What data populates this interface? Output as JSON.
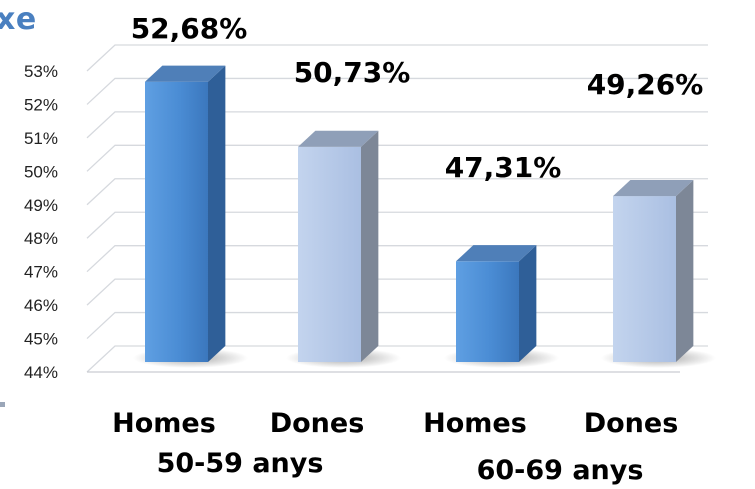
{
  "title_fragment": "xe",
  "chart_data": {
    "type": "bar",
    "categories": [
      "Homes",
      "Dones",
      "Homes",
      "Dones"
    ],
    "groups": [
      "50-59 anys",
      "60-69 anys"
    ],
    "values": [
      52.68,
      50.73,
      47.31,
      49.26
    ],
    "data_labels": [
      "52,68%",
      "50,73%",
      "47,31%",
      "49,26%"
    ],
    "y_ticks": [
      "44%",
      "45%",
      "46%",
      "47%",
      "48%",
      "49%",
      "50%",
      "51%",
      "52%",
      "53%"
    ],
    "ylim": [
      44,
      53
    ],
    "grid": true,
    "colors": [
      "#4a8fd6",
      "#b5c8e8",
      "#4a8fd6",
      "#b5c8e8"
    ]
  }
}
